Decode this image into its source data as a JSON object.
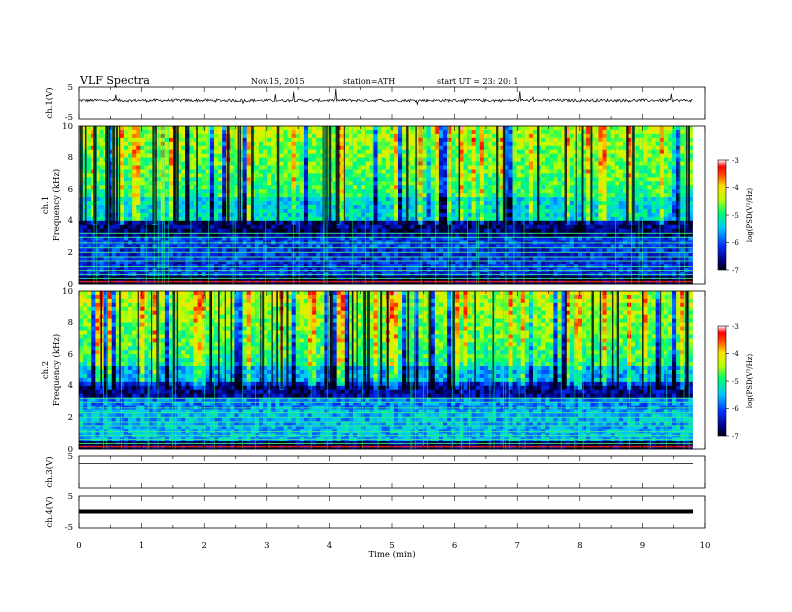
{
  "header": {
    "title": "VLF  Spectra",
    "date": "Nov.15, 2015",
    "station": "station=ATH",
    "start_ut": "start  UT  =   23: 20: 1"
  },
  "chart_data": [
    {
      "type": "line",
      "ylabel": "ch.1(V)",
      "ylim": [
        -5,
        5
      ],
      "yticks": [
        "5",
        "-5"
      ],
      "description": "ch.1 waveform: noisy trace around y=1 with spikes"
    },
    {
      "type": "heatmap",
      "ylabel_line1": "ch.1",
      "ylabel_line2": "Frequency  (kHz)",
      "ylim": [
        0,
        10
      ],
      "yticks": [
        "0",
        "2",
        "4",
        "6",
        "8",
        "10"
      ],
      "colorbar": {
        "label": "log(PSD(V²/Hz)",
        "range": [
          -7,
          -3
        ],
        "ticks": [
          "-3",
          "-4",
          "-5",
          "-6",
          "-7"
        ]
      }
    },
    {
      "type": "heatmap",
      "ylabel_line1": "ch.2",
      "ylabel_line2": "Frequency  (kHz)",
      "ylim": [
        0,
        10
      ],
      "yticks": [
        "0",
        "2",
        "4",
        "6",
        "8",
        "10"
      ],
      "colorbar": {
        "label": "log(PSD(V²/Hz)",
        "range": [
          -7,
          -3
        ],
        "ticks": [
          "-3",
          "-4",
          "-5",
          "-6",
          "-7"
        ]
      }
    },
    {
      "type": "line",
      "ylabel": "ch.3(V)",
      "ylim": [
        -5,
        5
      ],
      "yticks": [
        "5"
      ],
      "description": "ch.3 flat line near y=4.3"
    },
    {
      "type": "line",
      "ylabel": "ch.4(V)",
      "ylim": [
        -5,
        5
      ],
      "yticks": [
        "5",
        "-5"
      ],
      "description": "ch.4 thick flat line near y=0"
    }
  ],
  "xaxis": {
    "label": "Time  (min)",
    "range": [
      0,
      10
    ],
    "ticks": [
      "0",
      "1",
      "2",
      "3",
      "4",
      "5",
      "6",
      "7",
      "8",
      "9",
      "10"
    ],
    "data_end": 9.8
  }
}
